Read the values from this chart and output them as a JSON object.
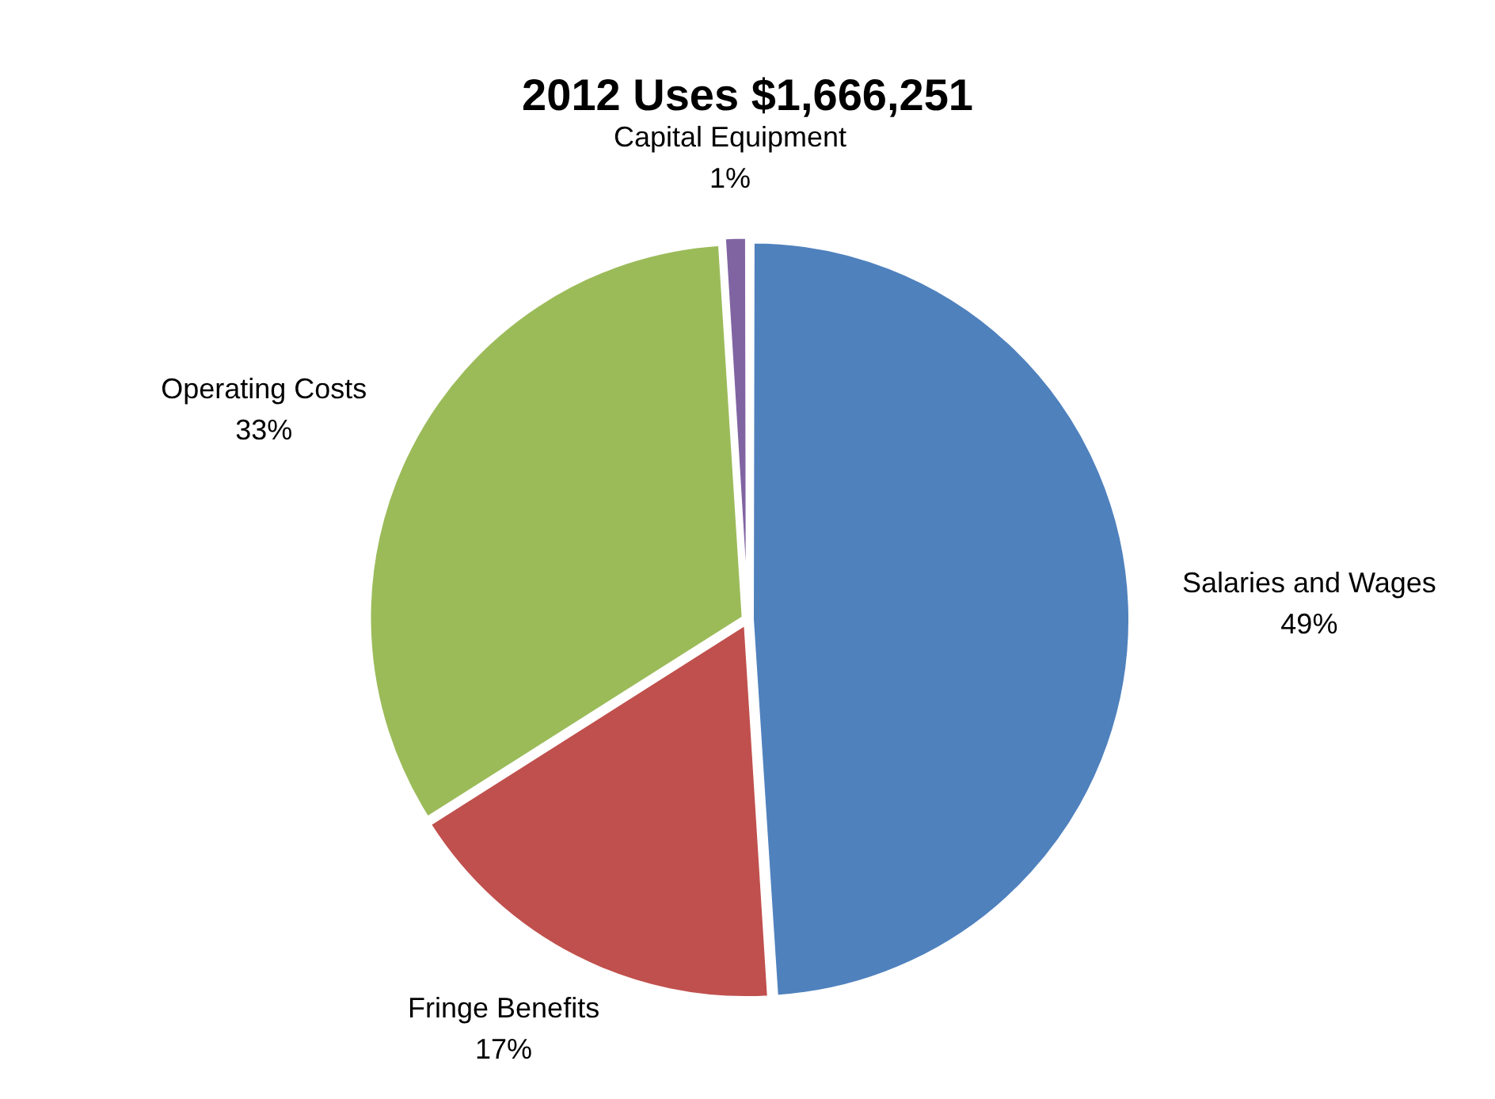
{
  "chart_data": {
    "type": "pie",
    "title": "2012 Uses $1,666,251",
    "categories": [
      "Salaries and Wages",
      "Fringe Benefits",
      "Operating Costs",
      "Capital Equipment"
    ],
    "values": [
      49,
      17,
      33,
      1
    ],
    "colors": [
      "#4f81bd",
      "#c0504d",
      "#9bbb59",
      "#8064a2"
    ],
    "value_labels": [
      "49%",
      "17%",
      "33%",
      "1%"
    ],
    "legend": false
  }
}
